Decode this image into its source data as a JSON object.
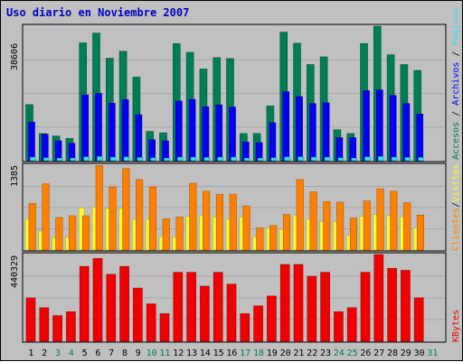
{
  "chart_data": {
    "type": "bar",
    "title": "Uso diario en Noviembre 2007",
    "categories": [
      "1",
      "2",
      "3",
      "4",
      "5",
      "6",
      "7",
      "8",
      "9",
      "10",
      "11",
      "12",
      "13",
      "14",
      "15",
      "16",
      "17",
      "18",
      "19",
      "20",
      "21",
      "22",
      "23",
      "24",
      "25",
      "26",
      "27",
      "28",
      "29",
      "30",
      "31"
    ],
    "weekend_days": [
      "3",
      "4",
      "10",
      "11",
      "17",
      "18",
      "24",
      "25",
      "31"
    ],
    "colors": {
      "visitas": "#f9f93a",
      "paginas": "#44d8f0",
      "archivos": "#0000f0",
      "accesos": "#007c56",
      "clientes": "#ff8000",
      "kbytes": "#f00000",
      "title": "#0000c0",
      "weekday_label": "#000000",
      "weekend_label": "#007c56",
      "background": "#c0c0c0"
    },
    "panels": [
      {
        "name": "requests",
        "max_label": "38606",
        "ymax": 38606,
        "series": [
          {
            "name": "Accesos",
            "values": [
              16100,
              7800,
              7100,
              6400,
              33800,
              36600,
              29400,
              31400,
              24000,
              8400,
              8000,
              33600,
              31100,
              26300,
              29600,
              29300,
              7800,
              7800,
              15700,
              36900,
              33700,
              27600,
              29800,
              8900,
              7800,
              33600,
              38606,
              30400,
              27600,
              25900,
              null
            ]
          },
          {
            "name": "Archivos",
            "values": [
              11100,
              7600,
              5700,
              5000,
              18900,
              19300,
              16500,
              17500,
              13200,
              6000,
              5700,
              17100,
              17600,
              15500,
              16000,
              15400,
              5400,
              5200,
              10900,
              19800,
              18400,
              16400,
              16600,
              6600,
              6600,
              20100,
              20300,
              18700,
              16400,
              13400,
              null
            ]
          },
          {
            "name": "Páginas",
            "values": [
              1000,
              800,
              700,
              700,
              1100,
              1200,
              1000,
              1100,
              900,
              800,
              700,
              1000,
              1000,
              900,
              1000,
              1000,
              700,
              700,
              800,
              1100,
              1100,
              1000,
              1000,
              800,
              700,
              1100,
              1200,
              1000,
              900,
              900,
              null
            ]
          }
        ],
        "legend": [
          {
            "text": "Accesos",
            "color": "#007c56"
          },
          {
            "text": "Archivos",
            "color": "#0000f0"
          },
          {
            "text": "Páginas",
            "color": "#44d8f0"
          }
        ]
      },
      {
        "name": "visits",
        "max_label": "1385",
        "ymax": 1385,
        "series": [
          {
            "name": "Clientes",
            "values": [
              760,
              1080,
              530,
              560,
              560,
              1380,
              1030,
              1330,
              1150,
              1030,
              510,
              540,
              1090,
              960,
              910,
              910,
              720,
              360,
              400,
              580,
              1150,
              950,
              790,
              780,
              520,
              800,
              1000,
              960,
              770,
              570,
              null
            ]
          },
          {
            "name": "Visitas",
            "values": [
              510,
              310,
              200,
              210,
              690,
              700,
              680,
              680,
              500,
              510,
              220,
              210,
              550,
              560,
              540,
              510,
              540,
              220,
              360,
              340,
              560,
              510,
              470,
              460,
              240,
              550,
              580,
              560,
              540,
              360,
              null
            ]
          }
        ],
        "legend": [
          {
            "text": "Clientes",
            "color": "#ff8000"
          },
          {
            "text": "/",
            "color": "#000000"
          },
          {
            "text": "Visitas",
            "color": "#f9f93a"
          }
        ]
      },
      {
        "name": "kbytes",
        "max_label": "440329",
        "ymax": 440329,
        "series": [
          {
            "name": "KBytes",
            "values": [
              220000,
              170000,
              130000,
              150000,
              380000,
              420000,
              340000,
              380000,
              270000,
              190000,
              140000,
              350000,
              350000,
              280000,
              350000,
              290000,
              140000,
              180000,
              230000,
              390000,
              390000,
              330000,
              350000,
              150000,
              170000,
              350000,
              440329,
              370000,
              360000,
              220000,
              null
            ]
          }
        ],
        "legend": [
          {
            "text": "KBytes",
            "color": "#f00000"
          }
        ]
      }
    ]
  }
}
